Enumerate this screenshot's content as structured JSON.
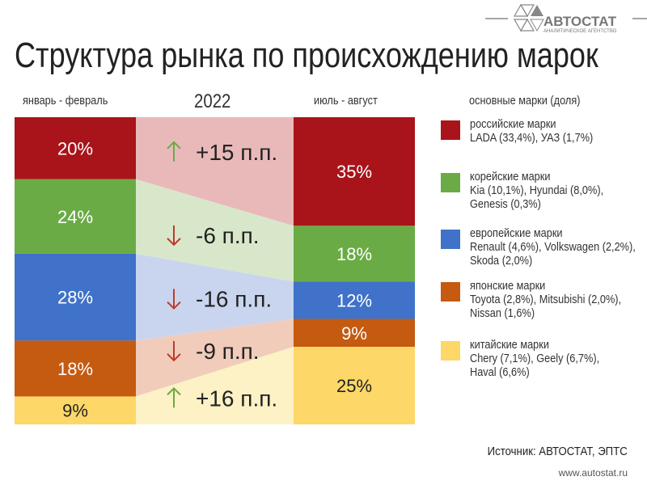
{
  "header": {
    "title": "Структура рынка по происхождению марок",
    "brand": "АВТОСТАТ",
    "brand_sub": "АНАЛИТИЧЕСКОЕ АГЕНТСТВО"
  },
  "chart_data": {
    "type": "stacked-bar-comparison",
    "title": "Структура рынка по происхождению марок",
    "year": "2022",
    "periods": [
      "январь - февраль",
      "июль - август"
    ],
    "legend_title": "основные марки (доля)",
    "categories": [
      "российские марки",
      "корейские марки",
      "европейские марки",
      "японские марки",
      "китайские марки"
    ],
    "colors": [
      "#a81419",
      "#6aab46",
      "#3f72c8",
      "#c55a11",
      "#fdd767"
    ],
    "light_colors": [
      "#e9b9ba",
      "#d8e7ca",
      "#c9d5ef",
      "#f1ccbb",
      "#fdf1c6"
    ],
    "series": [
      {
        "name": "январь - февраль",
        "values": [
          20,
          24,
          28,
          18,
          9
        ],
        "labels": [
          "20%",
          "24%",
          "28%",
          "18%",
          "9%"
        ]
      },
      {
        "name": "июль - август",
        "values": [
          35,
          18,
          12,
          9,
          25
        ],
        "labels": [
          "35%",
          "18%",
          "12%",
          "9%",
          "25%"
        ]
      }
    ],
    "changes": [
      {
        "dir": "up",
        "label": "+15 п.п."
      },
      {
        "dir": "down",
        "label": "-6 п.п."
      },
      {
        "dir": "down",
        "label": "-16 п.п."
      },
      {
        "dir": "down",
        "label": "-9 п.п."
      },
      {
        "dir": "up",
        "label": "+16 п.п."
      }
    ],
    "legend": [
      {
        "name": "российские марки",
        "brands": [
          "LADA (33,4%), УАЗ (1,7%)"
        ]
      },
      {
        "name": "корейские марки",
        "brands": [
          "Kia (10,1%), Hyundai (8,0%),",
          "Genesis (0,3%)"
        ]
      },
      {
        "name": "европейские марки",
        "brands": [
          "Renault (4,6%), Volkswagen (2,2%),",
          "Skoda (2,0%)"
        ]
      },
      {
        "name": "японские марки",
        "brands": [
          "Toyota (2,8%), Mitsubishi (2,0%),",
          "Nissan (1,6%)"
        ]
      },
      {
        "name": "китайские марки",
        "brands": [
          "Chery (7,1%), Geely (6,7%),",
          "Haval (6,6%)"
        ]
      }
    ]
  },
  "footer": {
    "source": "Источник: АВТОСТАТ, ЭПТС",
    "url": "www.autostat.ru"
  }
}
